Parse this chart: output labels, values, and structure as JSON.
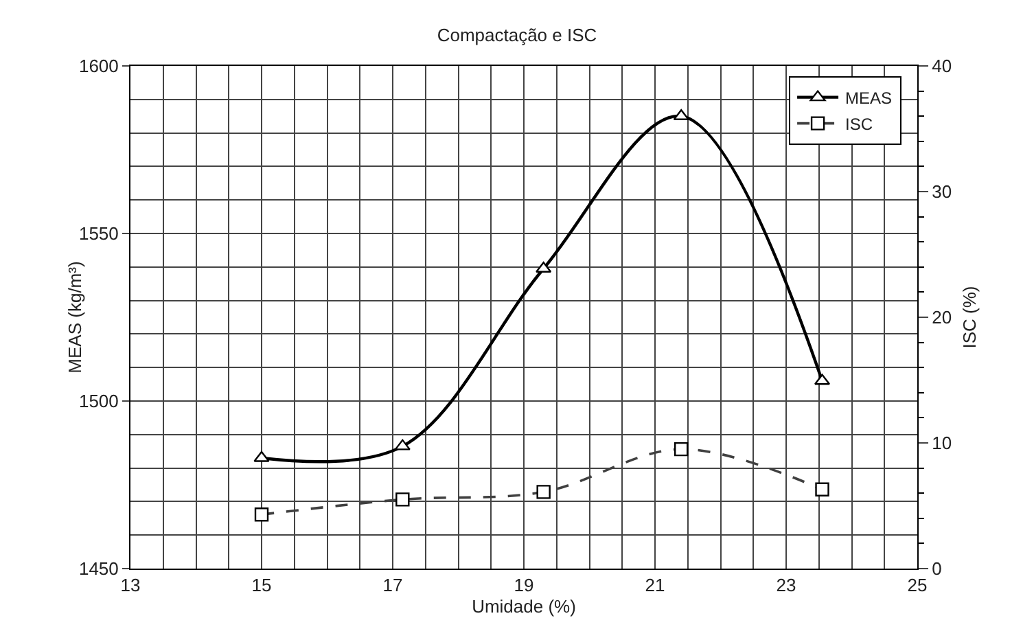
{
  "chart_data": {
    "type": "line",
    "title": "Compactação e ISC",
    "xlabel": "Umidade (%)",
    "ylabel": "MEAS (kg/m³)",
    "y2label": "ISC (%)",
    "x": [
      15,
      17.15,
      19.3,
      21.4,
      23.55
    ],
    "series": [
      {
        "name": "MEAS",
        "color": "#000000",
        "values": [
          1483,
          1486.5,
          1539.5,
          1585,
          1506
        ],
        "marker": "triangle",
        "line_style": "solid"
      },
      {
        "name": "ISC",
        "color": "#404040",
        "values": [
          4.3,
          5.5,
          6.1,
          9.5,
          6.3
        ],
        "marker": "square",
        "line_style": "dashed",
        "axis": "y2"
      }
    ],
    "xlim": [
      13,
      25
    ],
    "xticks": [
      13,
      15,
      17,
      19,
      21,
      23,
      25
    ],
    "ylim": [
      1450,
      1600
    ],
    "yticks": [
      1450,
      1500,
      1550,
      1600
    ],
    "y2lim": [
      0,
      40
    ],
    "y2ticks": [
      0,
      10,
      20,
      30,
      40
    ],
    "grid": true,
    "legend": "top right"
  }
}
